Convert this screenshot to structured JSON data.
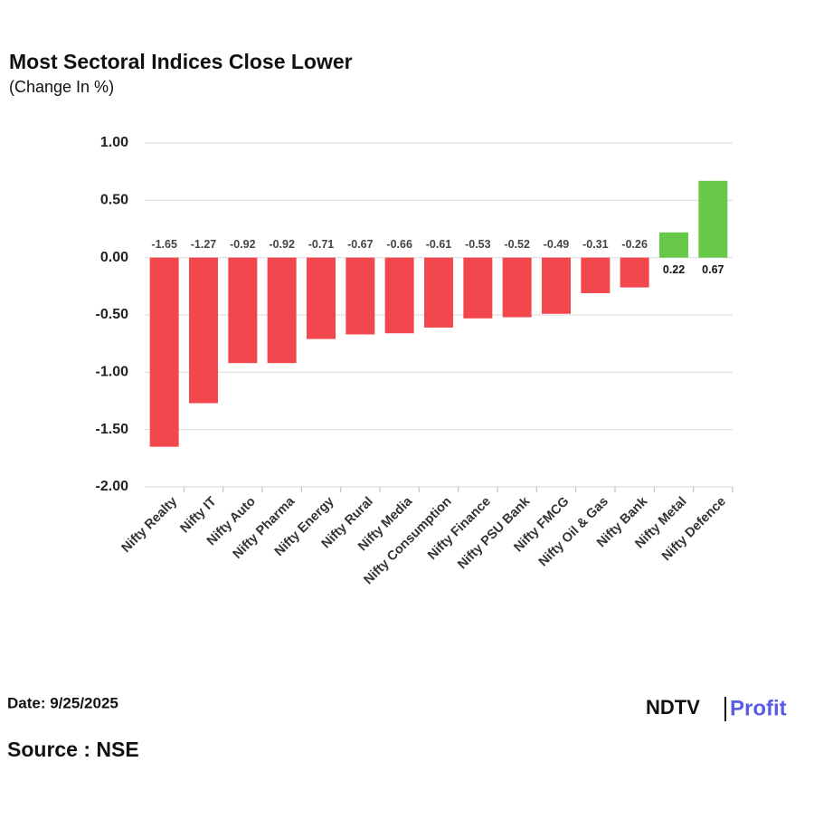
{
  "chart_data": {
    "type": "bar",
    "title": "Most Sectoral Indices Close Lower",
    "subtitle": "(Change In %)",
    "categories": [
      "Nifty Realty",
      "Nifty IT",
      "Nifty Auto",
      "Nifty Pharma",
      "Nifty Energy",
      "Nifty Rural",
      "Nifty Media",
      "Nifty Consumption",
      "Nifty Finance",
      "Nifty PSU Bank",
      "Nifty FMCG",
      "Nifty Oil & Gas",
      "Nifty Bank",
      "Nifty Metal",
      "Nifty Defence"
    ],
    "values": [
      -1.65,
      -1.27,
      -0.92,
      -0.92,
      -0.71,
      -0.67,
      -0.66,
      -0.61,
      -0.53,
      -0.52,
      -0.49,
      -0.31,
      -0.26,
      0.22,
      0.67
    ],
    "color": "#f2474d",
    "positive_color": "#67c84a",
    "ylim": [
      -2,
      1
    ],
    "yticks": [
      {
        "value": -2,
        "label": "-2.00"
      },
      {
        "value": -1.5,
        "label": "-1.50"
      },
      {
        "value": -1,
        "label": "-1.00"
      },
      {
        "value": -0.5,
        "label": "-0.50"
      },
      {
        "value": 0,
        "label": "0.00"
      },
      {
        "value": 0.5,
        "label": "0.50"
      },
      {
        "value": 1,
        "label": "1.00"
      }
    ],
    "grid": true,
    "date": "Date: 9/25/2025",
    "source": "Source : NSE",
    "brand": [
      "NDTV",
      "Profit"
    ]
  }
}
